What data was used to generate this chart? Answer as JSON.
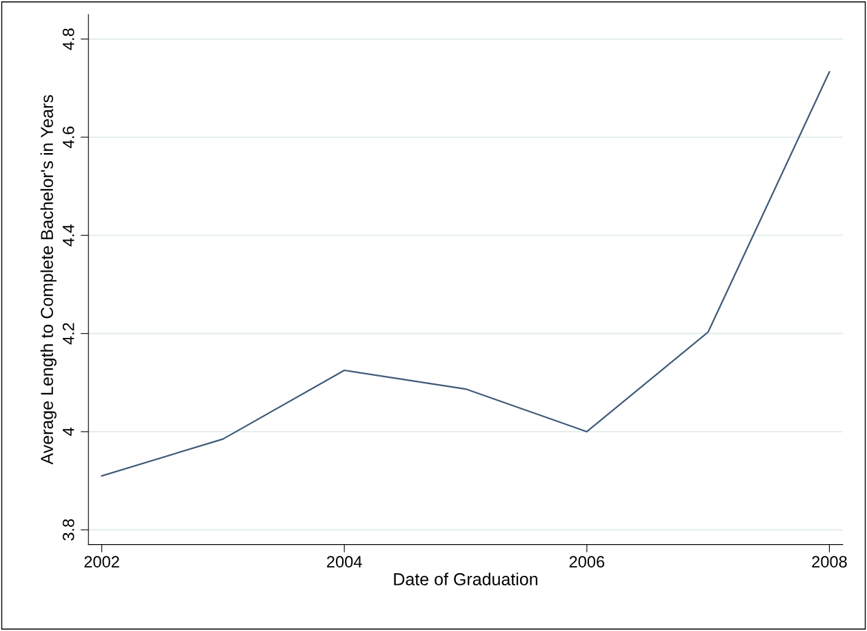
{
  "chart_data": {
    "type": "line",
    "xlabel": "Date of Graduation",
    "ylabel": "Average Length to Complete Bachelor's in Years",
    "x": [
      2002,
      2003,
      2004,
      2005,
      2006,
      2007,
      2008
    ],
    "series": [
      {
        "color": "#3e5a78",
        "values": [
          3.91,
          3.985,
          4.125,
          4.087,
          4.0,
          4.203,
          4.733
        ]
      }
    ],
    "xlim": [
      2001.89,
      2008.11
    ],
    "xticks": [
      2002,
      2004,
      2006,
      2008
    ],
    "ylim": [
      3.77,
      4.85
    ],
    "yticks": [
      3.8,
      4,
      4.2,
      4.4,
      4.6,
      4.8
    ],
    "grid": "y",
    "legend": false
  }
}
